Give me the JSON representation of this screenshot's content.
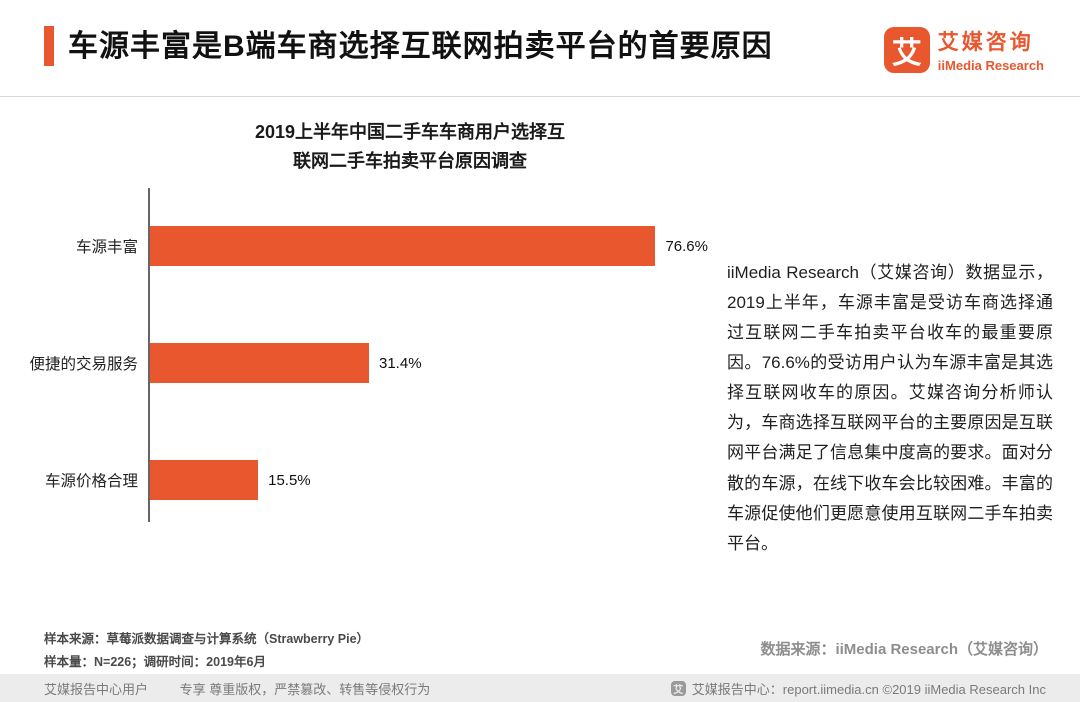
{
  "colors": {
    "accent": "#E8572E",
    "bar": "#E8572E",
    "footer_bg": "#ECECEC"
  },
  "header": {
    "title": "车源丰富是B端车商选择互联网拍卖平台的首要原因",
    "logo": {
      "mark_glyph": "艾",
      "name_cn": "艾媒咨询",
      "name_en": "iiMedia Research"
    }
  },
  "chart_data": {
    "type": "bar",
    "orientation": "horizontal",
    "title": "2019上半年中国二手车车商用户选择互联网二手车拍卖平台原因调查",
    "title_lines": [
      "2019上半年中国二手车车商用户选择互",
      "联网二手车拍卖平台原因调查"
    ],
    "categories": [
      "车源丰富",
      "便捷的交易服务",
      "车源价格合理"
    ],
    "values": [
      76.6,
      31.4,
      15.5
    ],
    "value_labels": [
      "76.6%",
      "31.4%",
      "15.5%"
    ],
    "xlim": [
      0,
      80
    ],
    "bar_color": "#E8572E",
    "grid": false,
    "legend": false
  },
  "analysis": {
    "text": "iiMedia Research（艾媒咨询）数据显示，2019上半年，车源丰富是受访车商选择通过互联网二手车拍卖平台收车的最重要原因。76.6%的受访用户认为车源丰富是其选择互联网收车的原因。艾媒咨询分析师认为，车商选择互联网平台的主要原因是互联网平台满足了信息集中度高的要求。面对分散的车源，在线下收车会比较困难。丰富的车源促使他们更愿意使用互联网二手车拍卖平台。"
  },
  "footnotes": {
    "sample_source": "样本来源：草莓派数据调查与计算系统（Strawberry Pie）",
    "sample_size": "样本量：N=226；调研时间：2019年6月",
    "data_source": "数据来源：iiMedia Research（艾媒咨询）"
  },
  "footer": {
    "left": "艾媒报告中心用户",
    "notice": "专享 尊重版权，严禁篡改、转售等侵权行为",
    "logo_glyph": "艾",
    "right": "艾媒报告中心：report.iimedia.cn ©2019 iiMedia Research Inc"
  }
}
